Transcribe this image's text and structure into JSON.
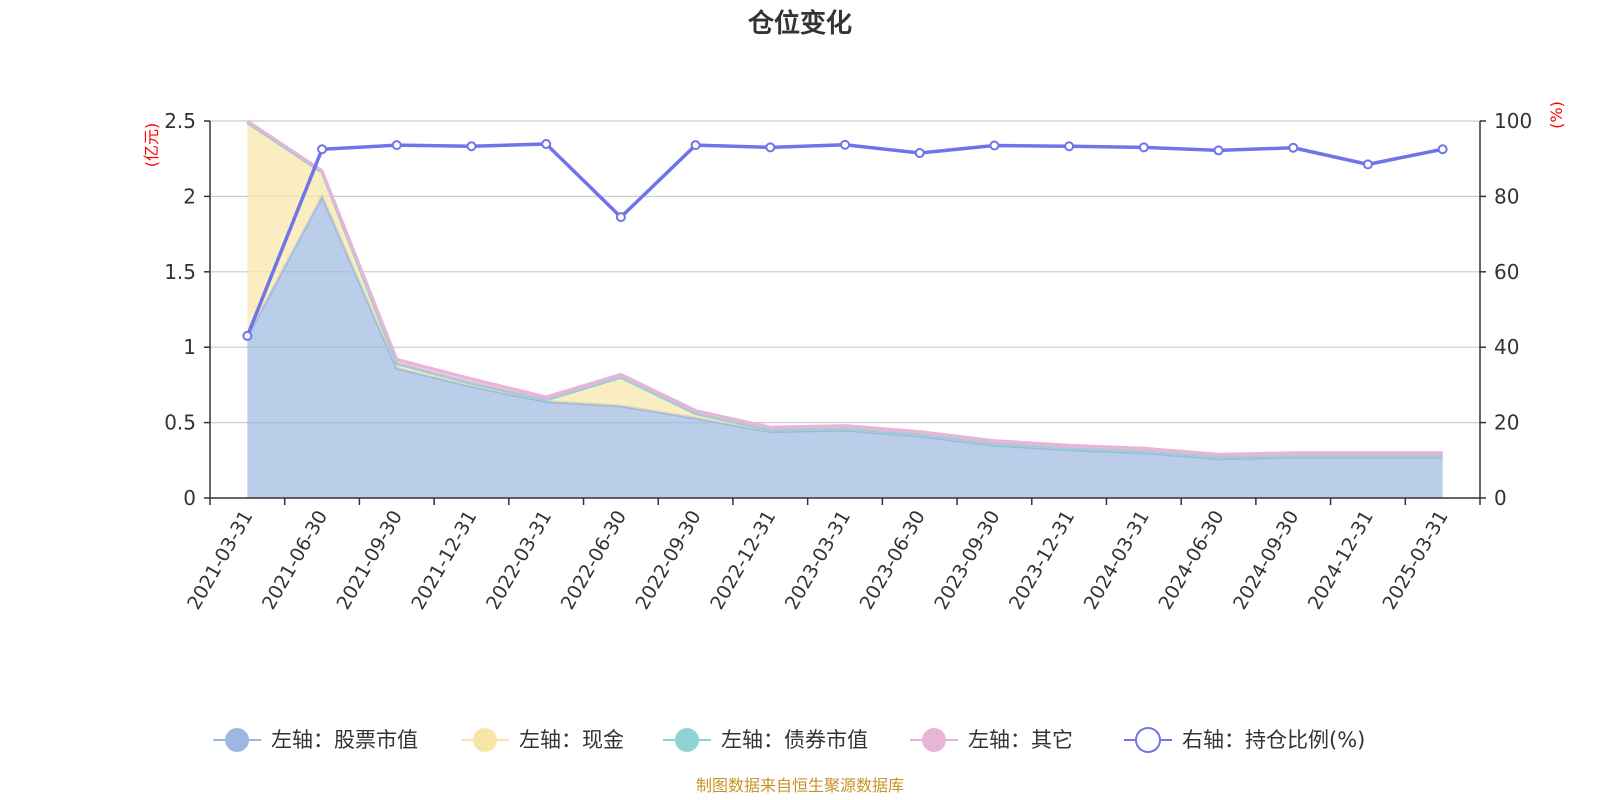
{
  "chart_data": {
    "type": "area",
    "title": "仓位变化",
    "source": "制图数据来自恒生聚源数据库",
    "left_axis": {
      "unit": "(亿元)",
      "ylim": [
        0,
        2.5
      ],
      "ticks": [
        "0",
        "0.5",
        "1",
        "1.5",
        "2",
        "2.5"
      ]
    },
    "right_axis": {
      "unit": "(%)",
      "ylim": [
        0,
        100
      ],
      "ticks": [
        "0",
        "20",
        "40",
        "60",
        "80",
        "100"
      ]
    },
    "categories": [
      "2021-03-31",
      "2021-06-30",
      "2021-09-30",
      "2021-12-31",
      "2022-03-31",
      "2022-06-30",
      "2022-09-30",
      "2022-12-31",
      "2023-03-31",
      "2023-06-30",
      "2023-09-30",
      "2023-12-31",
      "2024-03-31",
      "2024-06-30",
      "2024-09-30",
      "2024-12-31",
      "2025-03-31"
    ],
    "series": [
      {
        "name": "左轴：股票市值",
        "axis": "left",
        "color": "#9db8e0",
        "values": [
          1.07,
          2.0,
          0.86,
          0.74,
          0.64,
          0.61,
          0.53,
          0.44,
          0.45,
          0.41,
          0.35,
          0.32,
          0.3,
          0.26,
          0.27,
          0.27,
          0.27
        ]
      },
      {
        "name": "左轴：现金",
        "axis": "left",
        "color": "#f8e6a8",
        "values": [
          1.42,
          0.16,
          0.03,
          0.02,
          0.01,
          0.19,
          0.03,
          0.01,
          0.01,
          0.01,
          0.01,
          0.01,
          0.01,
          0.01,
          0.01,
          0.01,
          0.01
        ]
      },
      {
        "name": "左轴：债券市值",
        "axis": "left",
        "color": "#8fd3d3",
        "values": [
          0,
          0,
          0,
          0,
          0,
          0,
          0,
          0,
          0,
          0,
          0,
          0,
          0,
          0,
          0,
          0,
          0
        ]
      },
      {
        "name": "左轴：其它",
        "axis": "left",
        "color": "#e8b4d8",
        "values": [
          0.01,
          0.01,
          0.03,
          0.03,
          0.02,
          0.02,
          0.02,
          0.02,
          0.02,
          0.02,
          0.02,
          0.02,
          0.02,
          0.02,
          0.02,
          0.02,
          0.02
        ]
      },
      {
        "name": "右轴：持仓比例(%)",
        "axis": "right",
        "type": "line",
        "color": "#7073ea",
        "values": [
          43,
          92.5,
          93.6,
          93.3,
          93.9,
          74.5,
          93.6,
          93,
          93.7,
          91.5,
          93.5,
          93.3,
          93,
          92.2,
          92.9,
          88.5,
          92.5
        ]
      }
    ],
    "grid": true,
    "legend_position": "bottom"
  }
}
